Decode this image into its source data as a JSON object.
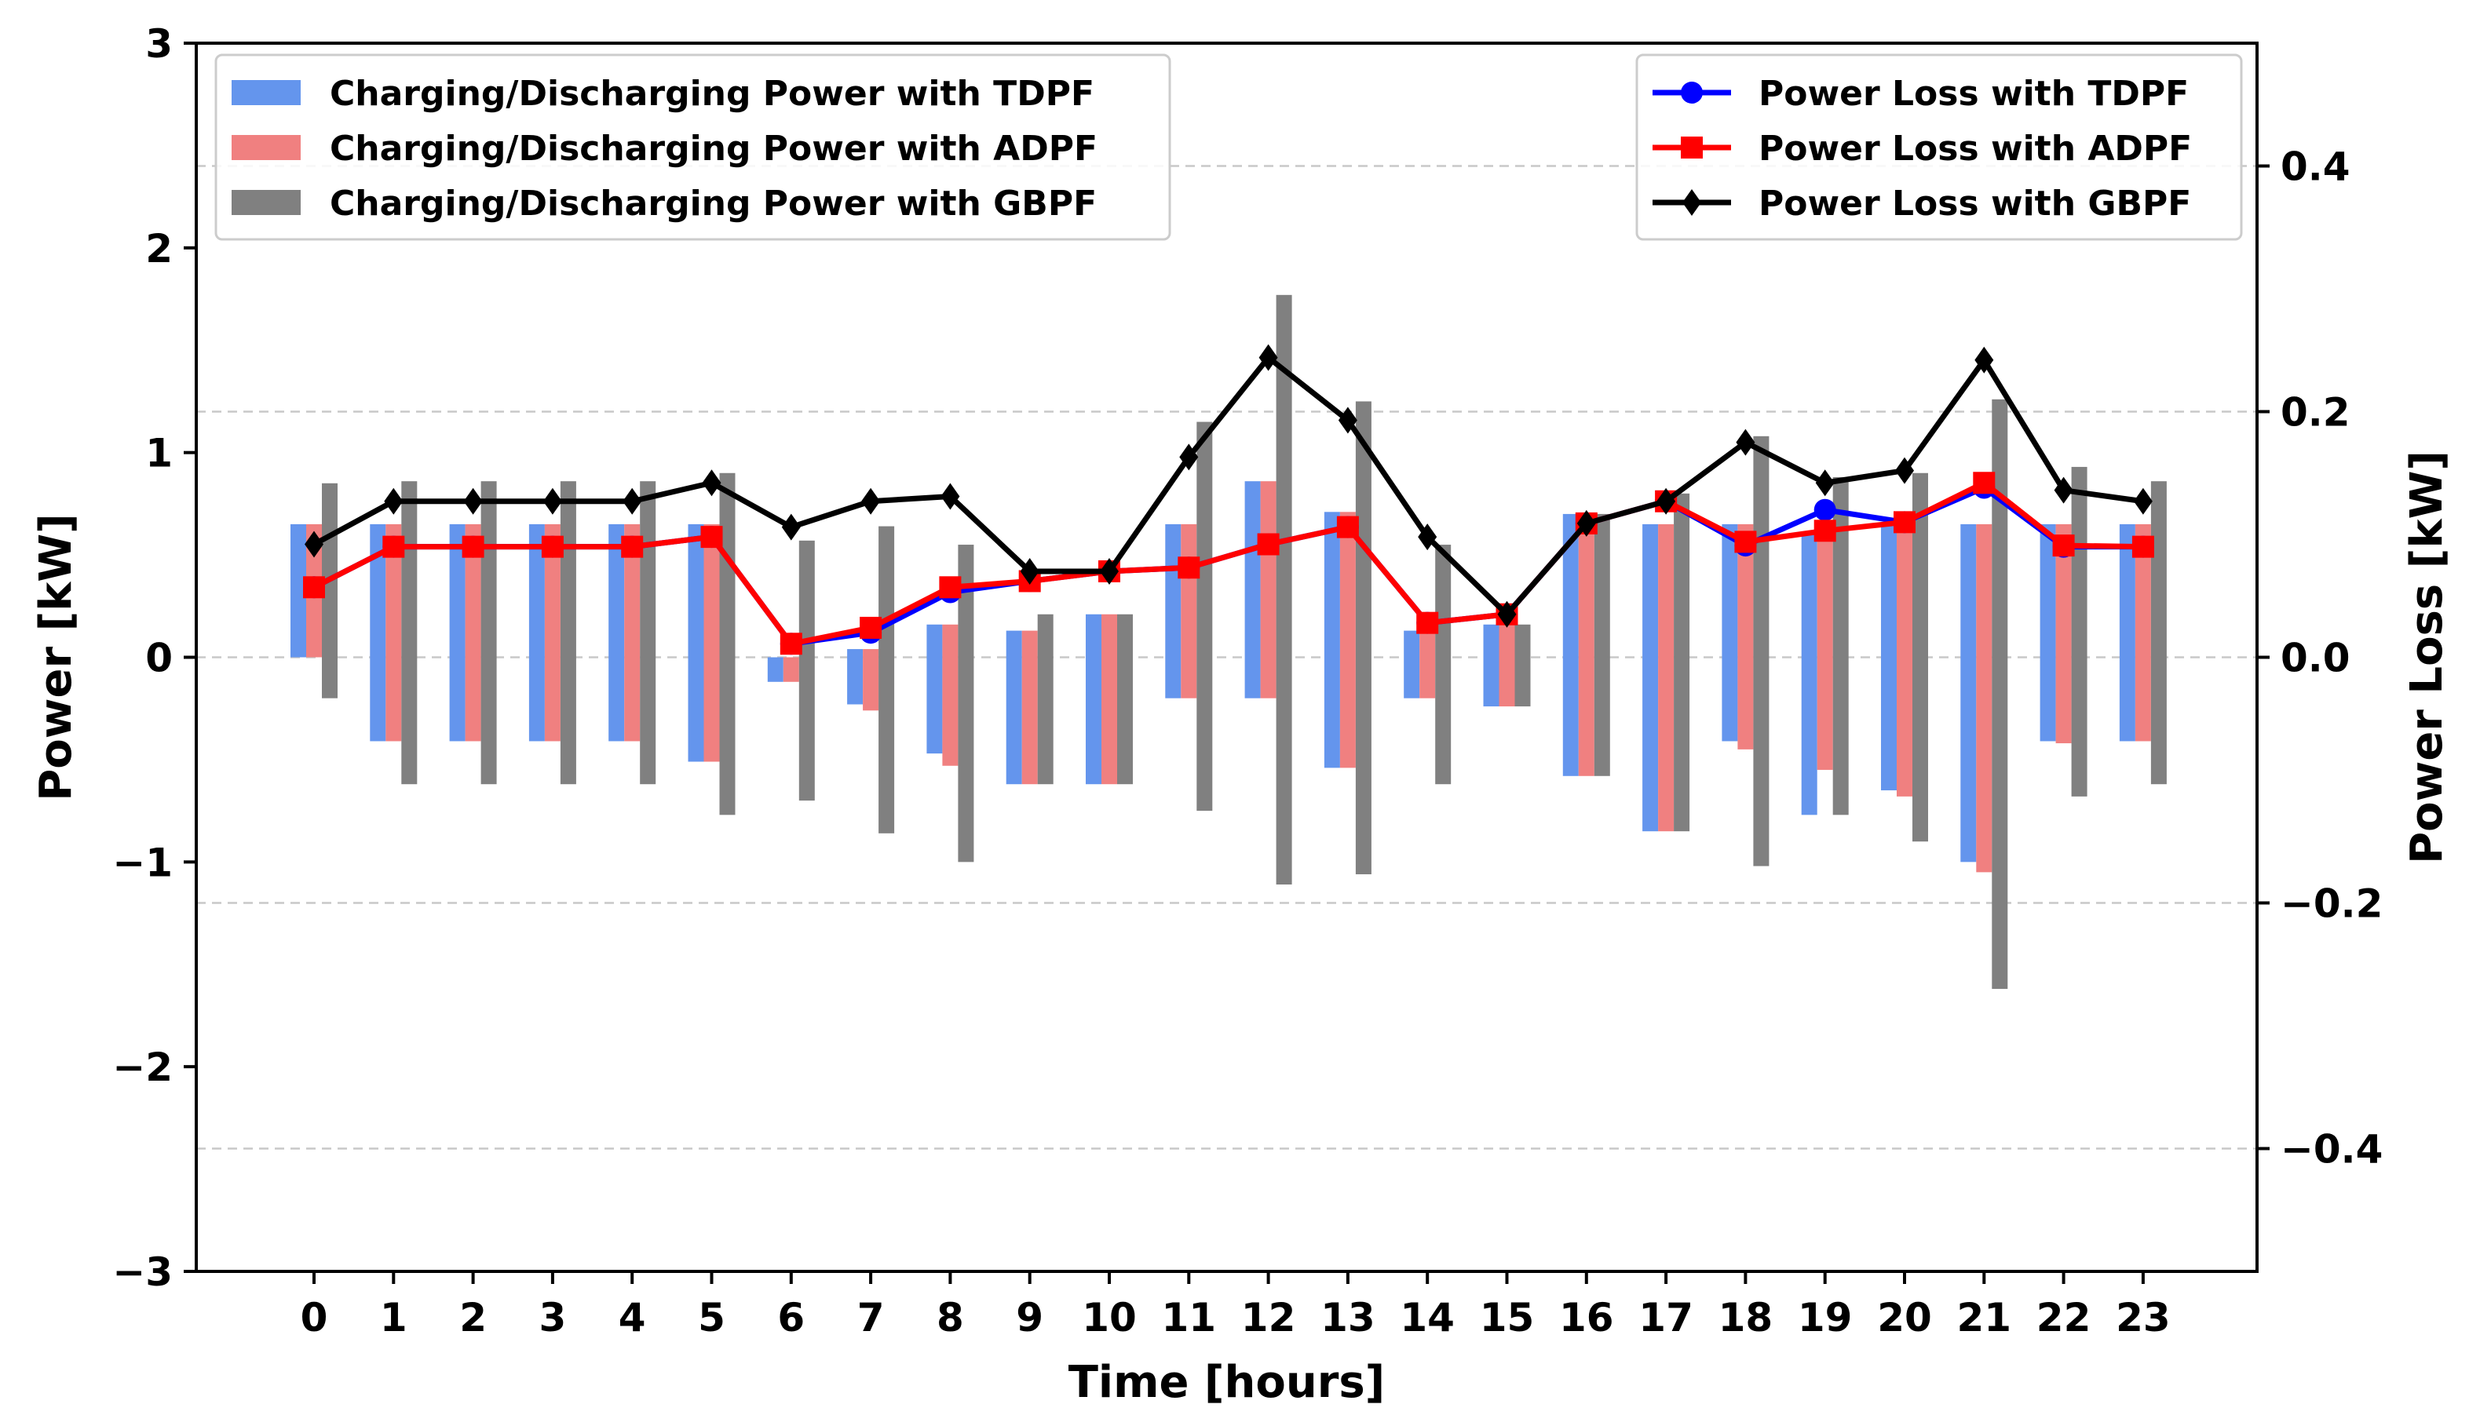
{
  "chart_data": {
    "type": "bar",
    "title": "",
    "xlabel": "Time [hours]",
    "ylabel": "Power [kW]",
    "y2label": "Power Loss [kW]",
    "categories": [
      "0",
      "1",
      "2",
      "3",
      "4",
      "5",
      "6",
      "7",
      "8",
      "9",
      "10",
      "11",
      "12",
      "13",
      "14",
      "15",
      "16",
      "17",
      "18",
      "19",
      "20",
      "21",
      "22",
      "23"
    ],
    "ylim": [
      -3,
      3
    ],
    "y2lim": [
      -0.5,
      0.5
    ],
    "yticks": [
      "−3",
      "−2",
      "−1",
      "0",
      "1",
      "2",
      "3"
    ],
    "yticks_values": [
      -3,
      -2,
      -1,
      0,
      1,
      2,
      3
    ],
    "y2ticks": [
      "−0.4",
      "−0.2",
      "0.0",
      "0.2",
      "0.4"
    ],
    "y2ticks_values": [
      -0.4,
      -0.2,
      0.0,
      0.2,
      0.4
    ],
    "grid": "y2-dashed",
    "bar_series": [
      {
        "name": "Charging/Discharging Power with TDPF",
        "color": "#6495ed",
        "values": [
          0.65,
          -0.41,
          -0.41,
          -0.41,
          -0.41,
          -0.51,
          -0.12,
          -0.23,
          -0.47,
          -0.62,
          -0.62,
          -0.2,
          -0.2,
          -0.54,
          -0.2,
          -0.24,
          -0.58,
          -0.85,
          -0.41,
          -0.77,
          -0.65,
          -1.0,
          -0.41,
          -0.41
        ]
      },
      {
        "name": "Charging/Discharging Power with ADPF",
        "color": "#f08080",
        "values": [
          0.65,
          -0.41,
          -0.41,
          -0.41,
          -0.41,
          -0.51,
          -0.12,
          -0.26,
          -0.53,
          -0.62,
          -0.62,
          -0.2,
          -0.2,
          -0.54,
          -0.2,
          -0.24,
          -0.58,
          -0.85,
          -0.45,
          -0.55,
          -0.68,
          -1.05,
          -0.42,
          -0.41
        ]
      },
      {
        "name": "Charging/Discharging Power with GBPF",
        "color": "#808080",
        "values": [
          -0.2,
          -0.62,
          -0.62,
          -0.62,
          -0.62,
          -0.77,
          -0.7,
          -0.86,
          -1.0,
          -0.62,
          -0.62,
          -0.75,
          -1.11,
          -1.06,
          -0.62,
          -0.24,
          -0.58,
          -0.85,
          -1.02,
          -0.77,
          -0.9,
          -1.62,
          -0.68,
          -0.62
        ]
      }
    ],
    "bar_positive_extents": [
      [
        0.65,
        0.65,
        0.65,
        0.65,
        0.65,
        0.65,
        0.0,
        0.04,
        0.16,
        0.13,
        0.21,
        0.65,
        0.86,
        0.71,
        0.13,
        0.16,
        0.7,
        0.65,
        0.65,
        0.6,
        0.65,
        0.65,
        0.65,
        0.65
      ],
      [
        0.65,
        0.65,
        0.65,
        0.65,
        0.65,
        0.65,
        0.0,
        0.04,
        0.16,
        0.13,
        0.21,
        0.65,
        0.86,
        0.71,
        0.13,
        0.16,
        0.7,
        0.65,
        0.65,
        0.6,
        0.65,
        0.65,
        0.65,
        0.65
      ],
      [
        0.85,
        0.86,
        0.86,
        0.86,
        0.86,
        0.9,
        0.57,
        0.64,
        0.55,
        0.21,
        0.21,
        1.15,
        1.77,
        1.25,
        0.55,
        0.16,
        0.7,
        0.8,
        1.08,
        0.88,
        0.9,
        1.26,
        0.93,
        0.86
      ]
    ],
    "line_series": [
      {
        "name": "Power Loss with TDPF",
        "color": "#0000ff",
        "marker": "circle",
        "values": [
          0.057,
          0.09,
          0.09,
          0.09,
          0.09,
          0.098,
          0.011,
          0.02,
          0.053,
          0.062,
          0.07,
          0.073,
          0.092,
          0.106,
          0.028,
          0.035,
          0.109,
          0.127,
          0.091,
          0.12,
          0.11,
          0.138,
          0.09,
          0.09
        ]
      },
      {
        "name": "Power Loss with ADPF",
        "color": "#ff0000",
        "marker": "square",
        "values": [
          0.057,
          0.09,
          0.09,
          0.09,
          0.09,
          0.098,
          0.011,
          0.024,
          0.057,
          0.062,
          0.07,
          0.073,
          0.092,
          0.106,
          0.028,
          0.035,
          0.109,
          0.127,
          0.094,
          0.103,
          0.11,
          0.142,
          0.091,
          0.09
        ]
      },
      {
        "name": "Power Loss with GBPF",
        "color": "#000000",
        "marker": "diamond",
        "values": [
          0.092,
          0.127,
          0.127,
          0.127,
          0.127,
          0.142,
          0.106,
          0.127,
          0.131,
          0.07,
          0.07,
          0.163,
          0.244,
          0.193,
          0.098,
          0.035,
          0.109,
          0.127,
          0.175,
          0.142,
          0.152,
          0.242,
          0.136,
          0.127
        ]
      }
    ],
    "legend_left": "top-left",
    "legend_right": "top-right"
  }
}
